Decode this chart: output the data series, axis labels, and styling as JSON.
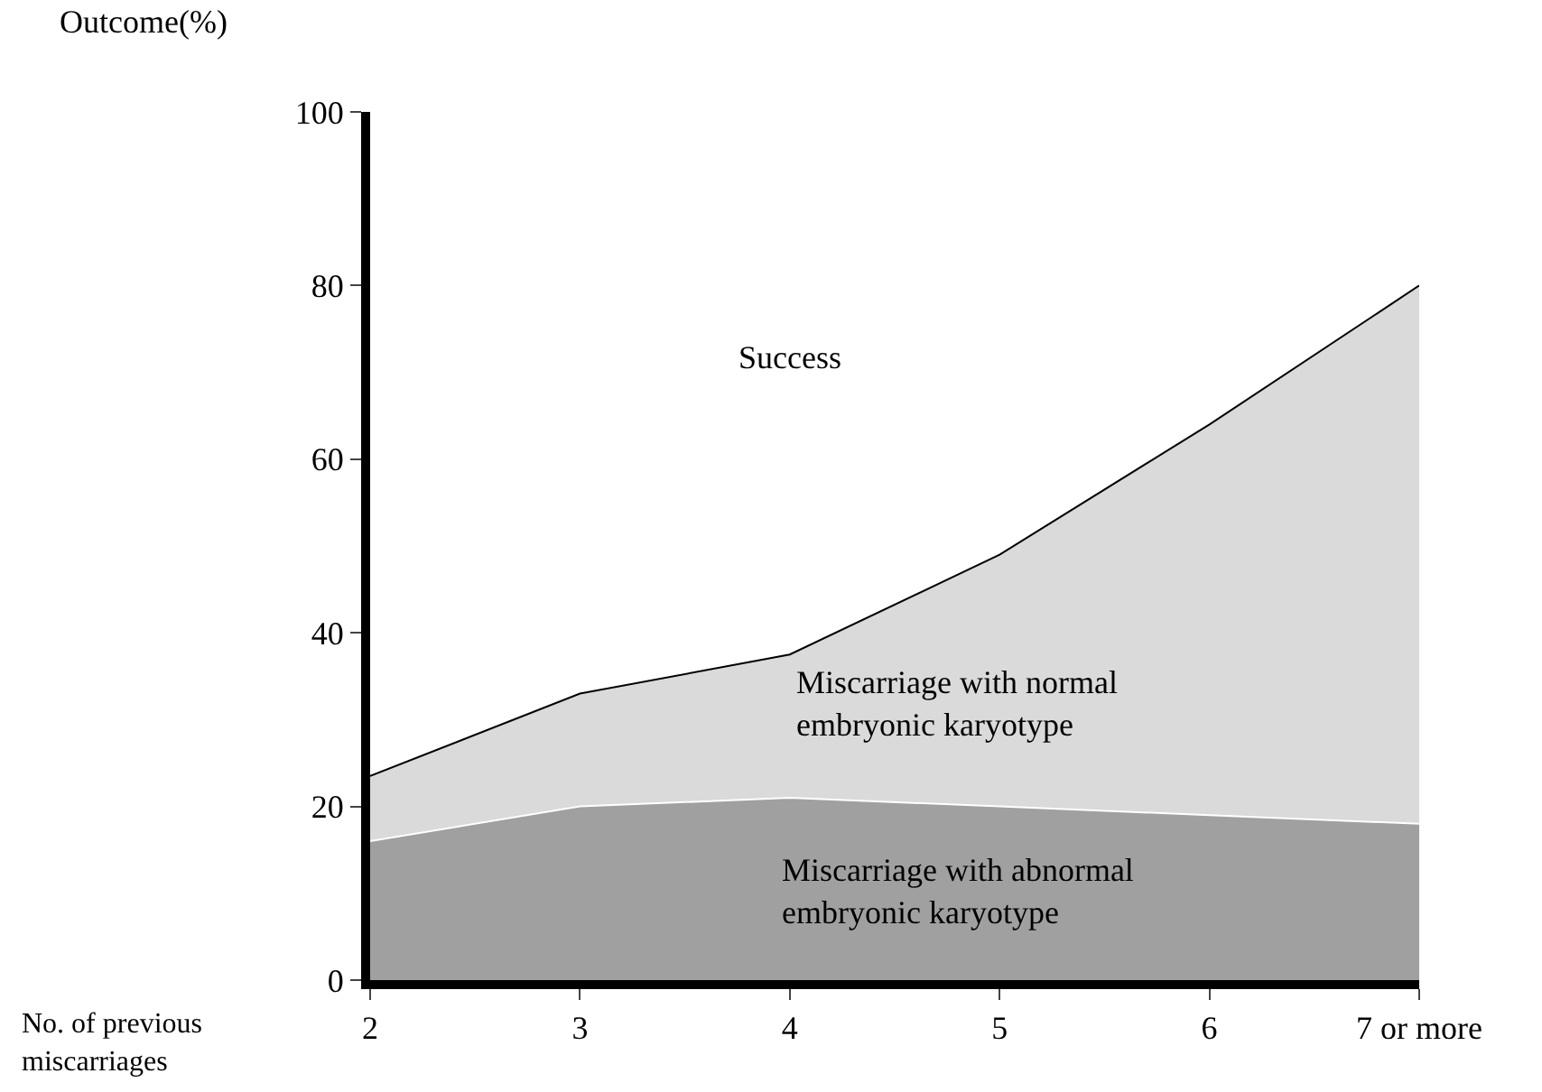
{
  "chart_data": {
    "type": "area",
    "stacked": true,
    "ylabel": "Outcome(%)",
    "xlabel": "No. of previous miscarriages",
    "categories": [
      "2",
      "3",
      "4",
      "5",
      "6",
      "7 or more"
    ],
    "series": [
      {
        "name": "Miscarriage with abnormal embryonic karyotype",
        "color": "#a0a0a0",
        "values": [
          16,
          20,
          21,
          20,
          19,
          18
        ]
      },
      {
        "name": "Miscarriage with normal embryonic karyotype",
        "color": "#dadada",
        "values": [
          7.5,
          13,
          16.5,
          29,
          45,
          62
        ]
      }
    ],
    "annotations": [
      "Success"
    ],
    "ylim": [
      0,
      100
    ],
    "yticks": [
      0,
      20,
      40,
      60,
      80,
      100
    ],
    "legend": false
  }
}
